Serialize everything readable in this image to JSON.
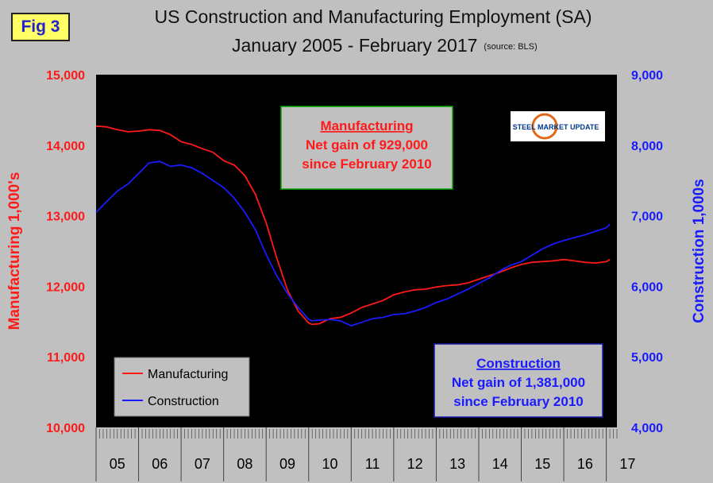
{
  "fig_label": "Fig 3",
  "title_line1": "US Construction and Manufacturing Employment (SA)",
  "title_line2": "January 2005 - February 2017",
  "source": "(source: BLS)",
  "logo_text": "STEEL MARKET UPDATE",
  "colors": {
    "manufacturing": "#ff1a1a",
    "construction": "#1a1aff",
    "plot_bg": "#000000",
    "figure_bg": "#c0c0c0",
    "annotation_bg": "#c0c0c0",
    "annotation_border": "#00aa00",
    "fig_label_bg": "#ffff66"
  },
  "annotations": {
    "manufacturing": {
      "heading": "Manufacturing",
      "line1": "Net gain of 929,000",
      "line2": "since February 2010"
    },
    "construction": {
      "heading": "Construction",
      "line1": "Net gain of 1,381,000",
      "line2": "since February 2010"
    }
  },
  "chart_data": {
    "type": "line",
    "x_label": "",
    "x_tick_labels": [
      "05",
      "06",
      "07",
      "08",
      "09",
      "10",
      "11",
      "12",
      "13",
      "14",
      "15",
      "16",
      "17"
    ],
    "y_left": {
      "label": "Manufacturing  1,000's",
      "range": [
        10000,
        15000
      ],
      "ticks": [
        "10,000",
        "11,000",
        "12,000",
        "13,000",
        "14,000",
        "15,000"
      ]
    },
    "y_right": {
      "label": "Construction 1,000s",
      "range": [
        4000,
        9000
      ],
      "ticks": [
        "4,000",
        "5,000",
        "6,000",
        "7,000",
        "8,000",
        "9,000"
      ]
    },
    "legend_position": "bottom-left",
    "grid": false,
    "series": [
      {
        "name": "Manufacturing",
        "axis": "left",
        "x": [
          2005.0,
          2005.25,
          2005.5,
          2005.75,
          2006.0,
          2006.25,
          2006.5,
          2006.75,
          2007.0,
          2007.25,
          2007.5,
          2007.75,
          2008.0,
          2008.25,
          2008.5,
          2008.75,
          2009.0,
          2009.25,
          2009.5,
          2009.75,
          2010.0,
          2010.083,
          2010.25,
          2010.5,
          2010.75,
          2011.0,
          2011.25,
          2011.5,
          2011.75,
          2012.0,
          2012.25,
          2012.5,
          2012.75,
          2013.0,
          2013.25,
          2013.5,
          2013.75,
          2014.0,
          2014.25,
          2014.5,
          2014.75,
          2015.0,
          2015.25,
          2015.5,
          2015.75,
          2016.0,
          2016.25,
          2016.5,
          2016.75,
          2017.0,
          2017.083
        ],
        "values": [
          14270,
          14260,
          14220,
          14190,
          14200,
          14220,
          14210,
          14150,
          14050,
          14010,
          13950,
          13900,
          13780,
          13720,
          13570,
          13300,
          12900,
          12400,
          11950,
          11650,
          11480,
          11460,
          11470,
          11540,
          11560,
          11620,
          11700,
          11750,
          11800,
          11880,
          11920,
          11950,
          11960,
          11990,
          12010,
          12020,
          12050,
          12100,
          12150,
          12200,
          12260,
          12310,
          12340,
          12350,
          12360,
          12380,
          12360,
          12340,
          12330,
          12350,
          12380
        ]
      },
      {
        "name": "Construction",
        "axis": "right",
        "x": [
          2005.0,
          2005.25,
          2005.5,
          2005.75,
          2006.0,
          2006.25,
          2006.5,
          2006.75,
          2007.0,
          2007.25,
          2007.5,
          2007.75,
          2008.0,
          2008.25,
          2008.5,
          2008.75,
          2009.0,
          2009.25,
          2009.5,
          2009.75,
          2010.0,
          2010.083,
          2010.25,
          2010.5,
          2010.75,
          2011.0,
          2011.25,
          2011.5,
          2011.75,
          2012.0,
          2012.25,
          2012.5,
          2012.75,
          2013.0,
          2013.25,
          2013.5,
          2013.75,
          2014.0,
          2014.25,
          2014.5,
          2014.75,
          2015.0,
          2015.25,
          2015.5,
          2015.75,
          2016.0,
          2016.25,
          2016.5,
          2016.75,
          2017.0,
          2017.083
        ],
        "values": [
          7050,
          7200,
          7350,
          7450,
          7600,
          7750,
          7770,
          7700,
          7720,
          7680,
          7600,
          7500,
          7400,
          7250,
          7050,
          6800,
          6450,
          6150,
          5900,
          5700,
          5530,
          5510,
          5520,
          5530,
          5510,
          5440,
          5490,
          5540,
          5560,
          5600,
          5610,
          5650,
          5700,
          5770,
          5820,
          5890,
          5960,
          6040,
          6120,
          6220,
          6300,
          6350,
          6440,
          6530,
          6600,
          6650,
          6690,
          6730,
          6780,
          6830,
          6880
        ]
      }
    ]
  }
}
